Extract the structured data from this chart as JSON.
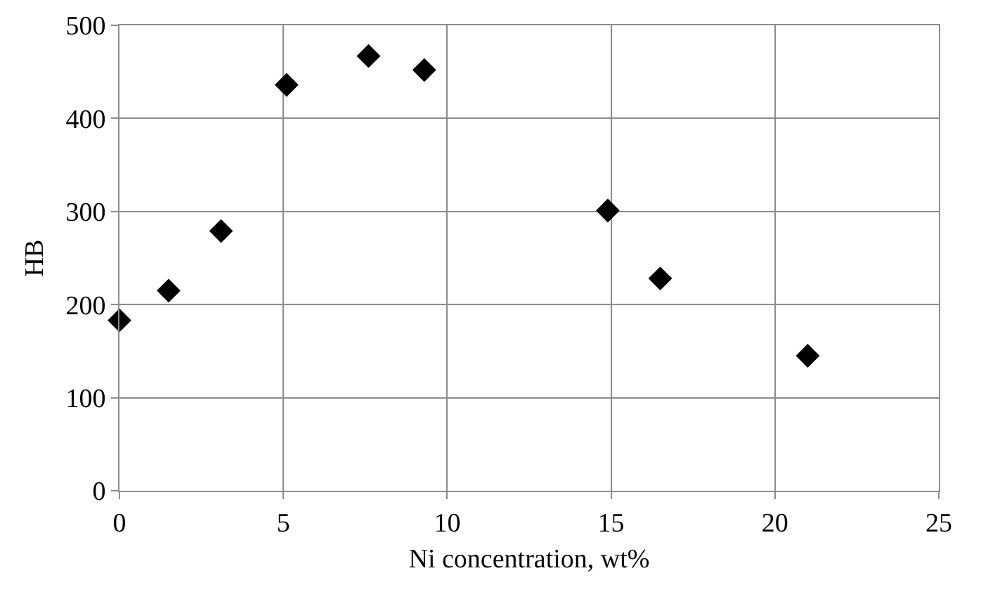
{
  "chart_data": {
    "type": "scatter",
    "xlabel": "Ni concentration, wt%",
    "ylabel": "HB",
    "x": [
      0,
      1.5,
      3.1,
      5.1,
      7.6,
      9.3,
      14.9,
      16.5,
      21
    ],
    "values": [
      183,
      215,
      279,
      436,
      467,
      452,
      301,
      228,
      145
    ],
    "color": "#000000",
    "marker": "diamond",
    "xlim": [
      0,
      25
    ],
    "xticks": [
      0,
      5,
      10,
      15,
      20,
      25
    ],
    "ylim": [
      0,
      500
    ],
    "yticks": [
      0,
      100,
      200,
      300,
      400,
      500
    ],
    "grid": true,
    "legend": false
  }
}
